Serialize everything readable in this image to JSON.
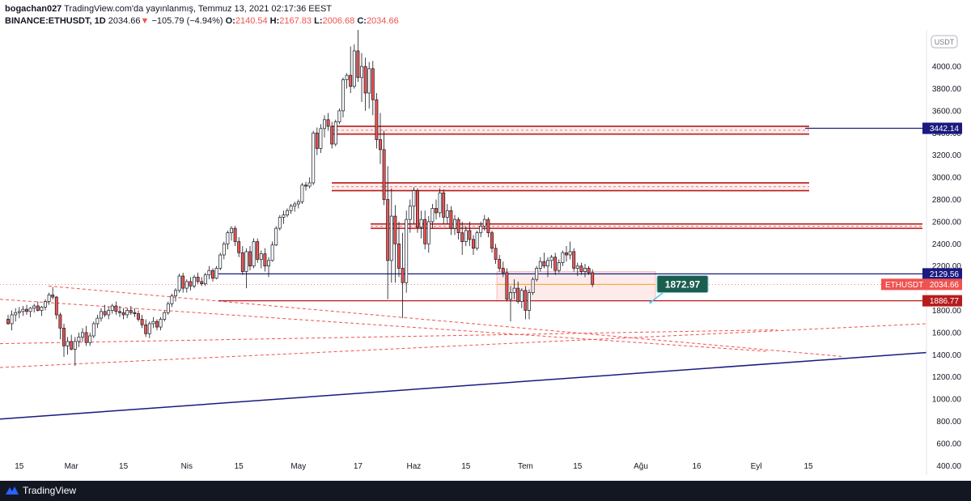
{
  "header": {
    "author": "bogachan027",
    "published_text": "TradingView.com'da yayınlanmış, Temmuz 13, 2021 02:17:36 EEST",
    "symbol": "BINANCE:ETHUSDT, 1D",
    "last": "2034.66",
    "change_arrow": "▼",
    "change": "−105.79 (−4.94%)",
    "o_label": "O:",
    "o_value": "2140.54",
    "h_label": "H:",
    "h_value": "2167.83",
    "l_label": "L:",
    "l_value": "2006.68",
    "c_label": "C:",
    "c_value": "2034.66"
  },
  "footer": {
    "brand": "TradingView"
  },
  "colors": {
    "up": "#ffffff",
    "down": "#ef5350",
    "candle_outline": "#131722",
    "navy": "#1a1a80",
    "darkred": "#b71c1c",
    "accent_teal": "#1b5e50"
  },
  "chart_data": {
    "type": "candlestick",
    "title": "BINANCE:ETHUSDT, 1D",
    "currency_tag": "USDT",
    "y_axis": {
      "range": [
        300,
        4300
      ],
      "ticks": [
        "4000.00",
        "3800.00",
        "3600.00",
        "3400.00",
        "3200.00",
        "3000.00",
        "2800.00",
        "2600.00",
        "2400.00",
        "2200.00",
        "1800.00",
        "1600.00",
        "1400.00",
        "1200.00",
        "1000.00",
        "800.00",
        "600.00",
        "400.00"
      ]
    },
    "x_axis": {
      "ticks": [
        {
          "label": "15",
          "date": "2021-02-15"
        },
        {
          "label": "Mar",
          "date": "2021-03-01"
        },
        {
          "label": "15",
          "date": "2021-03-15"
        },
        {
          "label": "Nis",
          "date": "2021-04-01"
        },
        {
          "label": "15",
          "date": "2021-04-15"
        },
        {
          "label": "May",
          "date": "2021-05-01"
        },
        {
          "label": "17",
          "date": "2021-05-17"
        },
        {
          "label": "Haz",
          "date": "2021-06-01"
        },
        {
          "label": "15",
          "date": "2021-06-15"
        },
        {
          "label": "Tem",
          "date": "2021-07-01"
        },
        {
          "label": "15",
          "date": "2021-07-15"
        },
        {
          "label": "Ağu",
          "date": "2021-08-01"
        },
        {
          "label": "16",
          "date": "2021-08-16"
        },
        {
          "label": "Eyl",
          "date": "2021-09-01"
        },
        {
          "label": "15",
          "date": "2021-09-15"
        }
      ]
    },
    "candles": [
      {
        "o": 1720,
        "h": 1760,
        "l": 1670,
        "c": 1680
      },
      {
        "o": 1680,
        "h": 1800,
        "l": 1620,
        "c": 1760
      },
      {
        "o": 1760,
        "h": 1820,
        "l": 1700,
        "c": 1780
      },
      {
        "o": 1780,
        "h": 1830,
        "l": 1730,
        "c": 1790
      },
      {
        "o": 1790,
        "h": 1840,
        "l": 1750,
        "c": 1810
      },
      {
        "o": 1810,
        "h": 1850,
        "l": 1760,
        "c": 1790
      },
      {
        "o": 1790,
        "h": 1830,
        "l": 1740,
        "c": 1820
      },
      {
        "o": 1820,
        "h": 1860,
        "l": 1780,
        "c": 1840
      },
      {
        "o": 1840,
        "h": 1880,
        "l": 1790,
        "c": 1800
      },
      {
        "o": 1800,
        "h": 1840,
        "l": 1750,
        "c": 1830
      },
      {
        "o": 1830,
        "h": 1900,
        "l": 1800,
        "c": 1880
      },
      {
        "o": 1880,
        "h": 1960,
        "l": 1850,
        "c": 1940
      },
      {
        "o": 1940,
        "h": 2010,
        "l": 1900,
        "c": 1920
      },
      {
        "o": 1920,
        "h": 1930,
        "l": 1720,
        "c": 1760
      },
      {
        "o": 1760,
        "h": 1780,
        "l": 1540,
        "c": 1640
      },
      {
        "o": 1640,
        "h": 1680,
        "l": 1380,
        "c": 1480
      },
      {
        "o": 1480,
        "h": 1560,
        "l": 1400,
        "c": 1520
      },
      {
        "o": 1520,
        "h": 1580,
        "l": 1440,
        "c": 1450
      },
      {
        "o": 1450,
        "h": 1560,
        "l": 1300,
        "c": 1520
      },
      {
        "o": 1520,
        "h": 1600,
        "l": 1470,
        "c": 1560
      },
      {
        "o": 1560,
        "h": 1640,
        "l": 1520,
        "c": 1600
      },
      {
        "o": 1600,
        "h": 1660,
        "l": 1480,
        "c": 1510
      },
      {
        "o": 1510,
        "h": 1600,
        "l": 1480,
        "c": 1570
      },
      {
        "o": 1570,
        "h": 1700,
        "l": 1550,
        "c": 1680
      },
      {
        "o": 1680,
        "h": 1760,
        "l": 1640,
        "c": 1730
      },
      {
        "o": 1730,
        "h": 1820,
        "l": 1700,
        "c": 1790
      },
      {
        "o": 1790,
        "h": 1850,
        "l": 1740,
        "c": 1760
      },
      {
        "o": 1760,
        "h": 1830,
        "l": 1720,
        "c": 1800
      },
      {
        "o": 1800,
        "h": 1860,
        "l": 1770,
        "c": 1840
      },
      {
        "o": 1840,
        "h": 1880,
        "l": 1760,
        "c": 1790
      },
      {
        "o": 1790,
        "h": 1840,
        "l": 1740,
        "c": 1780
      },
      {
        "o": 1780,
        "h": 1820,
        "l": 1720,
        "c": 1760
      },
      {
        "o": 1760,
        "h": 1820,
        "l": 1730,
        "c": 1800
      },
      {
        "o": 1800,
        "h": 1840,
        "l": 1760,
        "c": 1780
      },
      {
        "o": 1780,
        "h": 1820,
        "l": 1740,
        "c": 1770
      },
      {
        "o": 1770,
        "h": 1800,
        "l": 1700,
        "c": 1720
      },
      {
        "o": 1720,
        "h": 1760,
        "l": 1640,
        "c": 1670
      },
      {
        "o": 1670,
        "h": 1720,
        "l": 1560,
        "c": 1590
      },
      {
        "o": 1590,
        "h": 1700,
        "l": 1550,
        "c": 1680
      },
      {
        "o": 1680,
        "h": 1740,
        "l": 1640,
        "c": 1700
      },
      {
        "o": 1700,
        "h": 1720,
        "l": 1620,
        "c": 1650
      },
      {
        "o": 1650,
        "h": 1740,
        "l": 1620,
        "c": 1720
      },
      {
        "o": 1720,
        "h": 1800,
        "l": 1700,
        "c": 1780
      },
      {
        "o": 1780,
        "h": 1880,
        "l": 1760,
        "c": 1860
      },
      {
        "o": 1860,
        "h": 1950,
        "l": 1830,
        "c": 1930
      },
      {
        "o": 1930,
        "h": 2000,
        "l": 1880,
        "c": 1980
      },
      {
        "o": 1980,
        "h": 2130,
        "l": 1960,
        "c": 2110
      },
      {
        "o": 2110,
        "h": 2140,
        "l": 1960,
        "c": 2000
      },
      {
        "o": 2000,
        "h": 2080,
        "l": 1960,
        "c": 2060
      },
      {
        "o": 2060,
        "h": 2100,
        "l": 1980,
        "c": 2020
      },
      {
        "o": 2020,
        "h": 2120,
        "l": 2000,
        "c": 2100
      },
      {
        "o": 2100,
        "h": 2140,
        "l": 2040,
        "c": 2060
      },
      {
        "o": 2060,
        "h": 2100,
        "l": 2020,
        "c": 2040
      },
      {
        "o": 2040,
        "h": 2140,
        "l": 2020,
        "c": 2120
      },
      {
        "o": 2120,
        "h": 2200,
        "l": 2080,
        "c": 2160
      },
      {
        "o": 2160,
        "h": 2180,
        "l": 2060,
        "c": 2090
      },
      {
        "o": 2090,
        "h": 2200,
        "l": 2080,
        "c": 2180
      },
      {
        "o": 2180,
        "h": 2320,
        "l": 2160,
        "c": 2300
      },
      {
        "o": 2300,
        "h": 2420,
        "l": 2260,
        "c": 2400
      },
      {
        "o": 2400,
        "h": 2520,
        "l": 2350,
        "c": 2500
      },
      {
        "o": 2500,
        "h": 2560,
        "l": 2430,
        "c": 2540
      },
      {
        "o": 2540,
        "h": 2560,
        "l": 2380,
        "c": 2420
      },
      {
        "o": 2420,
        "h": 2460,
        "l": 2280,
        "c": 2320
      },
      {
        "o": 2320,
        "h": 2380,
        "l": 2120,
        "c": 2150
      },
      {
        "o": 2150,
        "h": 2360,
        "l": 2000,
        "c": 2330
      },
      {
        "o": 2330,
        "h": 2380,
        "l": 2160,
        "c": 2200
      },
      {
        "o": 2200,
        "h": 2450,
        "l": 2180,
        "c": 2420
      },
      {
        "o": 2420,
        "h": 2450,
        "l": 2230,
        "c": 2260
      },
      {
        "o": 2260,
        "h": 2340,
        "l": 2180,
        "c": 2310
      },
      {
        "o": 2310,
        "h": 2360,
        "l": 2150,
        "c": 2200
      },
      {
        "o": 2200,
        "h": 2280,
        "l": 2100,
        "c": 2250
      },
      {
        "o": 2250,
        "h": 2420,
        "l": 2240,
        "c": 2390
      },
      {
        "o": 2390,
        "h": 2560,
        "l": 2380,
        "c": 2540
      },
      {
        "o": 2540,
        "h": 2660,
        "l": 2520,
        "c": 2640
      },
      {
        "o": 2640,
        "h": 2700,
        "l": 2580,
        "c": 2660
      },
      {
        "o": 2660,
        "h": 2720,
        "l": 2640,
        "c": 2700
      },
      {
        "o": 2700,
        "h": 2760,
        "l": 2670,
        "c": 2740
      },
      {
        "o": 2740,
        "h": 2780,
        "l": 2690,
        "c": 2760
      },
      {
        "o": 2760,
        "h": 2800,
        "l": 2720,
        "c": 2780
      },
      {
        "o": 2780,
        "h": 2950,
        "l": 2760,
        "c": 2930
      },
      {
        "o": 2930,
        "h": 2960,
        "l": 2880,
        "c": 2920
      },
      {
        "o": 2920,
        "h": 3000,
        "l": 2900,
        "c": 2950
      },
      {
        "o": 2950,
        "h": 3420,
        "l": 2930,
        "c": 3400
      },
      {
        "o": 3400,
        "h": 3450,
        "l": 3200,
        "c": 3260
      },
      {
        "o": 3260,
        "h": 3480,
        "l": 3220,
        "c": 3440
      },
      {
        "o": 3440,
        "h": 3560,
        "l": 3360,
        "c": 3520
      },
      {
        "o": 3520,
        "h": 3580,
        "l": 3420,
        "c": 3460
      },
      {
        "o": 3460,
        "h": 3500,
        "l": 3260,
        "c": 3300
      },
      {
        "o": 3300,
        "h": 3520,
        "l": 3280,
        "c": 3500
      },
      {
        "o": 3500,
        "h": 3620,
        "l": 3480,
        "c": 3600
      },
      {
        "o": 3600,
        "h": 3900,
        "l": 3540,
        "c": 3880
      },
      {
        "o": 3880,
        "h": 3940,
        "l": 3800,
        "c": 3920
      },
      {
        "o": 3920,
        "h": 4180,
        "l": 3760,
        "c": 3820
      },
      {
        "o": 3820,
        "h": 4200,
        "l": 3800,
        "c": 4140
      },
      {
        "o": 4140,
        "h": 4350,
        "l": 3860,
        "c": 3900
      },
      {
        "o": 3900,
        "h": 4120,
        "l": 3680,
        "c": 4000
      },
      {
        "o": 4000,
        "h": 4080,
        "l": 3600,
        "c": 3760
      },
      {
        "o": 3760,
        "h": 4040,
        "l": 3620,
        "c": 3980
      },
      {
        "o": 3980,
        "h": 4050,
        "l": 3560,
        "c": 3700
      },
      {
        "o": 3700,
        "h": 3760,
        "l": 3260,
        "c": 3340
      },
      {
        "o": 3340,
        "h": 3580,
        "l": 3120,
        "c": 3250
      },
      {
        "o": 3250,
        "h": 3420,
        "l": 2750,
        "c": 2800
      },
      {
        "o": 2800,
        "h": 3100,
        "l": 1900,
        "c": 2250
      },
      {
        "o": 2250,
        "h": 2900,
        "l": 2050,
        "c": 2650
      },
      {
        "o": 2650,
        "h": 2750,
        "l": 2050,
        "c": 2400
      },
      {
        "o": 2400,
        "h": 2600,
        "l": 2100,
        "c": 2180
      },
      {
        "o": 2180,
        "h": 2500,
        "l": 1730,
        "c": 2050
      },
      {
        "o": 2050,
        "h": 2700,
        "l": 1960,
        "c": 2620
      },
      {
        "o": 2620,
        "h": 2800,
        "l": 2500,
        "c": 2740
      },
      {
        "o": 2740,
        "h": 2910,
        "l": 2580,
        "c": 2880
      },
      {
        "o": 2880,
        "h": 2900,
        "l": 2500,
        "c": 2550
      },
      {
        "o": 2550,
        "h": 2700,
        "l": 2450,
        "c": 2620
      },
      {
        "o": 2620,
        "h": 2700,
        "l": 2350,
        "c": 2400
      },
      {
        "o": 2400,
        "h": 2650,
        "l": 2320,
        "c": 2600
      },
      {
        "o": 2600,
        "h": 2760,
        "l": 2540,
        "c": 2720
      },
      {
        "o": 2720,
        "h": 2800,
        "l": 2620,
        "c": 2680
      },
      {
        "o": 2680,
        "h": 2900,
        "l": 2640,
        "c": 2860
      },
      {
        "o": 2860,
        "h": 2890,
        "l": 2580,
        "c": 2640
      },
      {
        "o": 2640,
        "h": 2760,
        "l": 2580,
        "c": 2700
      },
      {
        "o": 2700,
        "h": 2740,
        "l": 2480,
        "c": 2540
      },
      {
        "o": 2540,
        "h": 2660,
        "l": 2480,
        "c": 2620
      },
      {
        "o": 2620,
        "h": 2640,
        "l": 2440,
        "c": 2500
      },
      {
        "o": 2500,
        "h": 2600,
        "l": 2300,
        "c": 2420
      },
      {
        "o": 2420,
        "h": 2560,
        "l": 2380,
        "c": 2520
      },
      {
        "o": 2520,
        "h": 2600,
        "l": 2380,
        "c": 2440
      },
      {
        "o": 2440,
        "h": 2480,
        "l": 2300,
        "c": 2360
      },
      {
        "o": 2360,
        "h": 2520,
        "l": 2340,
        "c": 2500
      },
      {
        "o": 2500,
        "h": 2600,
        "l": 2460,
        "c": 2560
      },
      {
        "o": 2560,
        "h": 2660,
        "l": 2520,
        "c": 2620
      },
      {
        "o": 2620,
        "h": 2640,
        "l": 2460,
        "c": 2500
      },
      {
        "o": 2500,
        "h": 2520,
        "l": 2320,
        "c": 2360
      },
      {
        "o": 2360,
        "h": 2400,
        "l": 2220,
        "c": 2260
      },
      {
        "o": 2260,
        "h": 2300,
        "l": 2150,
        "c": 2180
      },
      {
        "o": 2180,
        "h": 2240,
        "l": 2100,
        "c": 2140
      },
      {
        "o": 2140,
        "h": 2180,
        "l": 1880,
        "c": 1900
      },
      {
        "o": 1900,
        "h": 2020,
        "l": 1700,
        "c": 1960
      },
      {
        "o": 1960,
        "h": 2080,
        "l": 1900,
        "c": 2000
      },
      {
        "o": 2000,
        "h": 2060,
        "l": 1860,
        "c": 1880
      },
      {
        "o": 1880,
        "h": 2000,
        "l": 1820,
        "c": 1980
      },
      {
        "o": 1980,
        "h": 2020,
        "l": 1720,
        "c": 1800
      },
      {
        "o": 1800,
        "h": 1990,
        "l": 1720,
        "c": 1960
      },
      {
        "o": 1960,
        "h": 2100,
        "l": 1940,
        "c": 2080
      },
      {
        "o": 2080,
        "h": 2200,
        "l": 2060,
        "c": 2180
      },
      {
        "o": 2180,
        "h": 2280,
        "l": 2150,
        "c": 2240
      },
      {
        "o": 2240,
        "h": 2320,
        "l": 2180,
        "c": 2200
      },
      {
        "o": 2200,
        "h": 2280,
        "l": 2100,
        "c": 2250
      },
      {
        "o": 2250,
        "h": 2300,
        "l": 2180,
        "c": 2280
      },
      {
        "o": 2280,
        "h": 2320,
        "l": 2120,
        "c": 2160
      },
      {
        "o": 2160,
        "h": 2260,
        "l": 2140,
        "c": 2230
      },
      {
        "o": 2230,
        "h": 2340,
        "l": 2200,
        "c": 2320
      },
      {
        "o": 2320,
        "h": 2380,
        "l": 2240,
        "c": 2300
      },
      {
        "o": 2300,
        "h": 2420,
        "l": 2260,
        "c": 2330
      },
      {
        "o": 2330,
        "h": 2360,
        "l": 2150,
        "c": 2180
      },
      {
        "o": 2180,
        "h": 2230,
        "l": 2110,
        "c": 2200
      },
      {
        "o": 2200,
        "h": 2230,
        "l": 2120,
        "c": 2150
      },
      {
        "o": 2150,
        "h": 2220,
        "l": 2100,
        "c": 2180
      },
      {
        "o": 2180,
        "h": 2200,
        "l": 2120,
        "c": 2140
      },
      {
        "o": 2140,
        "h": 2170,
        "l": 2010,
        "c": 2035
      }
    ],
    "price_levels": [
      {
        "label": "3442.14",
        "value": 3442.14,
        "color": "navy"
      },
      {
        "label": "2129.56",
        "value": 2129.56,
        "color": "navy"
      },
      {
        "label": "1886.77",
        "value": 1886.77,
        "color": "darkred"
      }
    ],
    "last_price": {
      "symbol": "ETHUSDT",
      "value": "2034.66"
    },
    "annotation": {
      "text": "1872.97",
      "value": 1872.97
    },
    "resistance_zones": [
      [
        3390,
        3460
      ],
      [
        2880,
        2950
      ],
      [
        2540,
        2580
      ]
    ],
    "pink_box": {
      "top": 2150,
      "bottom": 1886.77
    },
    "grid": false,
    "legend": "none"
  }
}
